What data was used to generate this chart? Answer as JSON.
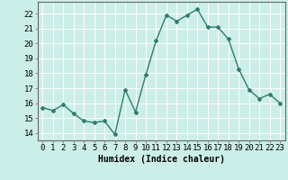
{
  "x": [
    0,
    1,
    2,
    3,
    4,
    5,
    6,
    7,
    8,
    9,
    10,
    11,
    12,
    13,
    14,
    15,
    16,
    17,
    18,
    19,
    20,
    21,
    22,
    23
  ],
  "y": [
    15.7,
    15.5,
    15.9,
    15.3,
    14.8,
    14.7,
    14.8,
    13.9,
    16.9,
    15.4,
    17.9,
    20.2,
    21.9,
    21.5,
    21.9,
    22.3,
    21.1,
    21.1,
    20.3,
    18.3,
    16.9,
    16.3,
    16.6,
    16.0
  ],
  "line_color": "#2e7d6e",
  "marker": "D",
  "marker_size": 2,
  "bg_color": "#cceee8",
  "grid_color": "#ffffff",
  "xlabel": "Humidex (Indice chaleur)",
  "xlabel_fontsize": 7,
  "ylabel_ticks": [
    14,
    15,
    16,
    17,
    18,
    19,
    20,
    21,
    22
  ],
  "xtick_labels": [
    "0",
    "1",
    "2",
    "3",
    "4",
    "5",
    "6",
    "7",
    "8",
    "9",
    "10",
    "11",
    "12",
    "13",
    "14",
    "15",
    "16",
    "17",
    "18",
    "19",
    "20",
    "21",
    "22",
    "23"
  ],
  "ylim": [
    13.5,
    22.8
  ],
  "xlim": [
    -0.5,
    23.5
  ],
  "line_width": 1.0,
  "tick_fontsize": 6.5
}
